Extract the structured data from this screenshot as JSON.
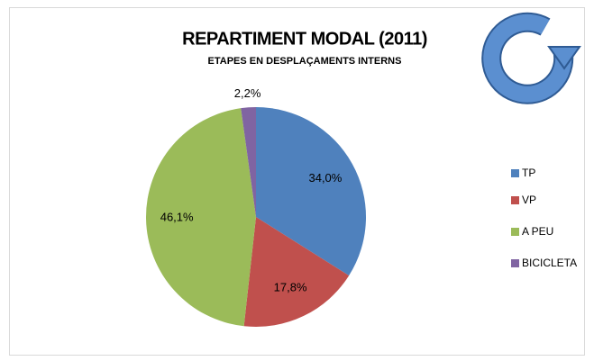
{
  "chart_data": {
    "type": "pie",
    "title": "REPARTIMENT MODAL (2011)",
    "subtitle": "ETAPES EN DESPLAÇAMENTS  INTERNS",
    "categories": [
      "TP",
      "VP",
      "A PEU",
      "BICICLETA"
    ],
    "values": [
      34.0,
      17.8,
      46.1,
      2.2
    ],
    "value_labels": [
      "34,0%",
      "17,8%",
      "46,1%",
      "2,2%"
    ],
    "colors": [
      "#4f81bd",
      "#c0504d",
      "#9bbb59",
      "#8064a2"
    ],
    "legend": "right"
  }
}
